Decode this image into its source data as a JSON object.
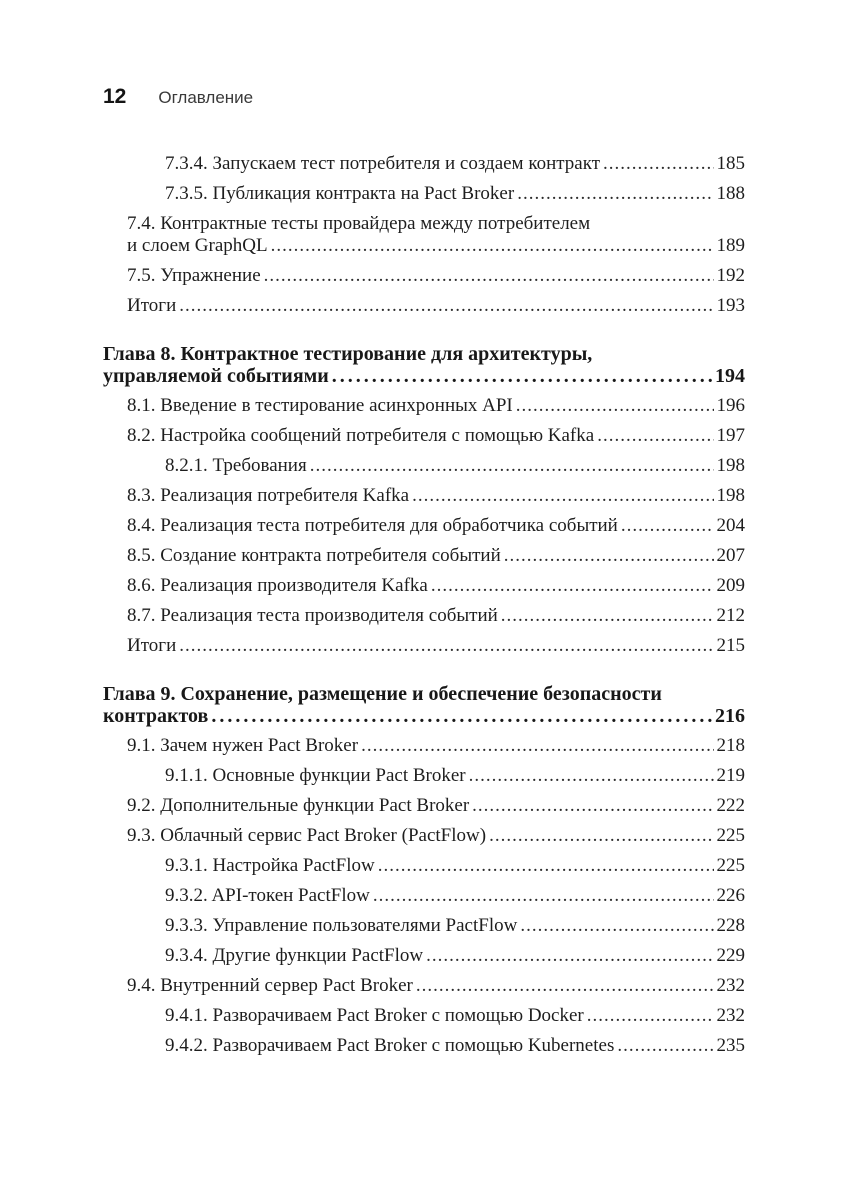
{
  "page_header": {
    "page_number": "12",
    "title": "Оглавление"
  },
  "toc": {
    "entries": [
      {
        "level": 2,
        "bold": false,
        "lines": [
          "7.3.4. Запускаем тест потребителя и создаем контракт"
        ],
        "page": "185"
      },
      {
        "level": 2,
        "bold": false,
        "lines": [
          "7.3.5. Публикация контракта на Pact Broker"
        ],
        "page": "188"
      },
      {
        "level": 1,
        "bold": false,
        "lines": [
          "7.4. Контрактные тесты провайдера между потребителем",
          "и слоем GraphQL"
        ],
        "page": "189"
      },
      {
        "level": 1,
        "bold": false,
        "lines": [
          "7.5. Упражнение"
        ],
        "page": "192"
      },
      {
        "level": 1,
        "bold": false,
        "lines": [
          "Итоги"
        ],
        "page": "193"
      },
      {
        "level": 0,
        "bold": true,
        "lines": [
          "Глава 8. Контрактное тестирование для архитектуры,",
          "управляемой событиями"
        ],
        "page": "194"
      },
      {
        "level": 1,
        "bold": false,
        "lines": [
          "8.1. Введение в тестирование асинхронных API"
        ],
        "page": "196"
      },
      {
        "level": 1,
        "bold": false,
        "lines": [
          "8.2. Настройка сообщений потребителя с помощью Kafka"
        ],
        "page": "197"
      },
      {
        "level": 2,
        "bold": false,
        "lines": [
          "8.2.1. Требования"
        ],
        "page": "198"
      },
      {
        "level": 1,
        "bold": false,
        "lines": [
          "8.3. Реализация потребителя Kafka"
        ],
        "page": "198"
      },
      {
        "level": 1,
        "bold": false,
        "lines": [
          "8.4. Реализация теста потребителя для обработчика событий"
        ],
        "page": "204"
      },
      {
        "level": 1,
        "bold": false,
        "lines": [
          "8.5. Создание контракта потребителя событий"
        ],
        "page": "207"
      },
      {
        "level": 1,
        "bold": false,
        "lines": [
          "8.6. Реализация производителя Kafka"
        ],
        "page": "209"
      },
      {
        "level": 1,
        "bold": false,
        "lines": [
          "8.7. Реализация теста производителя событий"
        ],
        "page": "212"
      },
      {
        "level": 1,
        "bold": false,
        "lines": [
          "Итоги"
        ],
        "page": "215"
      },
      {
        "level": 0,
        "bold": true,
        "lines": [
          "Глава 9. Сохранение, размещение и обеспечение безопасности",
          "контрактов"
        ],
        "page": "216"
      },
      {
        "level": 1,
        "bold": false,
        "lines": [
          "9.1. Зачем нужен Pact Broker"
        ],
        "page": "218"
      },
      {
        "level": 2,
        "bold": false,
        "lines": [
          "9.1.1. Основные функции Pact Broker"
        ],
        "page": "219"
      },
      {
        "level": 1,
        "bold": false,
        "lines": [
          "9.2. Дополнительные функции Pact Broker"
        ],
        "page": "222"
      },
      {
        "level": 1,
        "bold": false,
        "lines": [
          "9.3. Облачный сервис Pact Broker (PactFlow)"
        ],
        "page": "225"
      },
      {
        "level": 2,
        "bold": false,
        "lines": [
          "9.3.1. Настройка PactFlow"
        ],
        "page": "225"
      },
      {
        "level": 2,
        "bold": false,
        "lines": [
          "9.3.2. API-токен PactFlow"
        ],
        "page": "226"
      },
      {
        "level": 2,
        "bold": false,
        "lines": [
          "9.3.3. Управление пользователями PactFlow"
        ],
        "page": "228"
      },
      {
        "level": 2,
        "bold": false,
        "lines": [
          "9.3.4. Другие функции PactFlow"
        ],
        "page": "229"
      },
      {
        "level": 1,
        "bold": false,
        "lines": [
          "9.4. Внутренний сервер Pact Broker"
        ],
        "page": "232"
      },
      {
        "level": 2,
        "bold": false,
        "lines": [
          "9.4.1. Разворачиваем Pact Broker с помощью Docker"
        ],
        "page": "232"
      },
      {
        "level": 2,
        "bold": false,
        "lines": [
          "9.4.2. Разворачиваем Pact Broker с помощью Kubernetes"
        ],
        "page": "235"
      }
    ]
  }
}
